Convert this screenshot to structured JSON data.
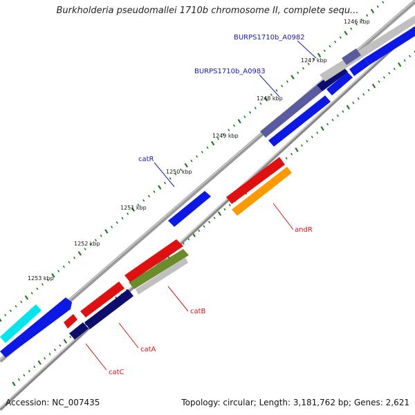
{
  "title": "Burkholderia pseudomallei 1710b chromosome II, complete sequ...",
  "footer": {
    "accession": "Accession: NC_007435",
    "summary": "Topology: circular; Length: 3,181,762 bp; Genes: 2,621"
  },
  "ticks": [
    "1246 kbp",
    "1247 kbp",
    "1248 kbp",
    "1249 kbp",
    "1250 kbp",
    "1251 kbp",
    "1252 kbp",
    "1253 kbp"
  ],
  "gene_labels": [
    {
      "text": "BURPS1710b_A0982",
      "color": "#1515c8"
    },
    {
      "text": "BURPS1710b_A0983",
      "color": "#1515c8"
    },
    {
      "text": "catR",
      "color": "#1515c8"
    },
    {
      "text": "andR",
      "color": "#dd1111"
    },
    {
      "text": "catB",
      "color": "#dd1111"
    },
    {
      "text": "catA",
      "color": "#dd1111"
    },
    {
      "text": "catC",
      "color": "#dd1111"
    }
  ],
  "colors": {
    "backbone": "#8c8c8c",
    "tick_dots": "#1f7a1f",
    "blue_cds": "#0b18e6",
    "navy_cds": "#0d0d6e",
    "red_cds": "#e01010",
    "orange_cds": "#ff9900",
    "olive_cds": "#6a8c2a",
    "cyan_cds": "#00e6ee",
    "slate_cds": "#5a5aa0",
    "grey_cds": "#c0c0c0"
  }
}
